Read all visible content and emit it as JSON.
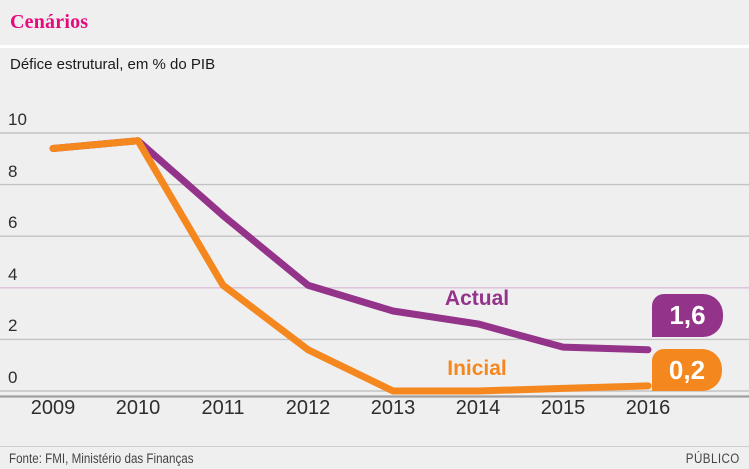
{
  "header": {
    "title": "Cenários",
    "subtitle": "Défice estrutural, em % do PIB"
  },
  "footer": {
    "source": "Fonte: FMI, Ministério das Finanças",
    "brand": "PÚBLICO"
  },
  "colors": {
    "background": "#f0eff0",
    "title_pink": "#e50b7d",
    "actual_purple": "#93338a",
    "inicial_orange": "#f4871e",
    "gridline": "#c3c3c3",
    "gridline_highlight": "#ddbfd7",
    "axis_line": "#9f9fa0",
    "badge_text": "#ffffff"
  },
  "chart_data": {
    "type": "line",
    "title": "Cenários",
    "subtitle": "Défice estrutural, em % do PIB",
    "x": [
      2009,
      2010,
      2011,
      2012,
      2013,
      2014,
      2015,
      2016
    ],
    "series": [
      {
        "name": "Actual",
        "color": "#93338a",
        "values": [
          9.4,
          9.7,
          6.8,
          4.1,
          3.1,
          2.6,
          1.7,
          1.6
        ],
        "end_label": "1,6"
      },
      {
        "name": "Inicial",
        "color": "#f4871e",
        "values": [
          9.4,
          9.7,
          4.1,
          1.6,
          0.0,
          0.0,
          0.1,
          0.2
        ],
        "end_label": "0,2"
      }
    ],
    "y_ticks": [
      10,
      8,
      6,
      4,
      2,
      0
    ],
    "ylim": [
      0,
      10
    ],
    "grid": true,
    "highlight_gridline": 4,
    "legend_position": "inline-labels"
  }
}
